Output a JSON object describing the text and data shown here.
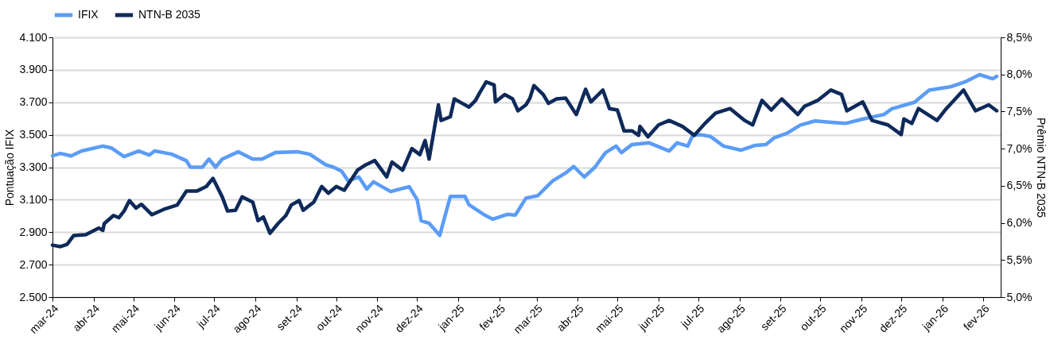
{
  "chart_data": {
    "type": "line",
    "ylabel": "Pontuação IFIX",
    "y2label": "Prêmio NTN-B 2035",
    "xlim": [
      "2024-03-01",
      "2026-02-14"
    ],
    "xticks": [
      {
        "value": "2024-03-01",
        "label": "mar-24"
      },
      {
        "value": "2024-04-01",
        "label": "abr-24"
      },
      {
        "value": "2024-05-01",
        "label": "mai-24"
      },
      {
        "value": "2024-06-01",
        "label": "jun-24"
      },
      {
        "value": "2024-07-01",
        "label": "jul-24"
      },
      {
        "value": "2024-08-01",
        "label": "ago-24"
      },
      {
        "value": "2024-09-01",
        "label": "set-24"
      },
      {
        "value": "2024-10-01",
        "label": "out-24"
      },
      {
        "value": "2024-11-01",
        "label": "nov-24"
      },
      {
        "value": "2024-12-01",
        "label": "dez-24"
      },
      {
        "value": "2025-01-01",
        "label": "jan-25"
      },
      {
        "value": "2025-02-01",
        "label": "fev-25"
      },
      {
        "value": "2025-03-01",
        "label": "mar-25"
      },
      {
        "value": "2025-04-01",
        "label": "abr-25"
      },
      {
        "value": "2025-05-01",
        "label": "mai-25"
      },
      {
        "value": "2025-06-01",
        "label": "jun-25"
      },
      {
        "value": "2025-07-01",
        "label": "jul-25"
      },
      {
        "value": "2025-08-01",
        "label": "ago-25"
      },
      {
        "value": "2025-09-01",
        "label": "set-25"
      },
      {
        "value": "2025-10-01",
        "label": "out-25"
      },
      {
        "value": "2025-11-01",
        "label": "nov-25"
      },
      {
        "value": "2025-12-01",
        "label": "dez-25"
      },
      {
        "value": "2026-01-01",
        "label": "jan-26"
      },
      {
        "value": "2026-02-01",
        "label": "fev-26"
      }
    ],
    "ylim": [
      2500,
      4100
    ],
    "yticks": [
      {
        "value": 2500,
        "label": "2.500"
      },
      {
        "value": 2700,
        "label": "2.700"
      },
      {
        "value": 2900,
        "label": "2.900"
      },
      {
        "value": 3100,
        "label": "3.100"
      },
      {
        "value": 3300,
        "label": "3.300"
      },
      {
        "value": 3500,
        "label": "3.500"
      },
      {
        "value": 3700,
        "label": "3.700"
      },
      {
        "value": 3900,
        "label": "3.900"
      },
      {
        "value": 4100,
        "label": "4.100"
      }
    ],
    "y2lim": [
      5.0,
      8.5
    ],
    "y2ticks": [
      {
        "value": 5.0,
        "label": "5,0%"
      },
      {
        "value": 5.5,
        "label": "5,5%"
      },
      {
        "value": 6.0,
        "label": "6,0%"
      },
      {
        "value": 6.5,
        "label": "6,5%"
      },
      {
        "value": 7.0,
        "label": "7,0%"
      },
      {
        "value": 7.5,
        "label": "7,5%"
      },
      {
        "value": 8.0,
        "label": "8,0%"
      },
      {
        "value": 8.5,
        "label": "8,5%"
      }
    ],
    "grid": "y",
    "legend": "top",
    "marker": "none",
    "line_style": "solid",
    "series": [
      {
        "name": "IFIX",
        "color": "#5b9cf6",
        "axis": "y",
        "x": [
          "2024-03-01",
          "2024-03-07",
          "2024-03-15",
          "2024-03-23",
          "2024-04-08",
          "2024-04-14",
          "2024-04-24",
          "2024-05-05",
          "2024-05-13",
          "2024-05-17",
          "2024-05-30",
          "2024-06-10",
          "2024-06-13",
          "2024-06-22",
          "2024-06-27",
          "2024-07-02",
          "2024-07-07",
          "2024-07-19",
          "2024-07-30",
          "2024-08-06",
          "2024-08-16",
          "2024-09-02",
          "2024-09-11",
          "2024-09-23",
          "2024-09-29",
          "2024-10-05",
          "2024-10-10",
          "2024-10-18",
          "2024-10-24",
          "2024-10-29",
          "2024-11-11",
          "2024-11-25",
          "2024-12-01",
          "2024-12-04",
          "2024-12-10",
          "2024-12-18",
          "2024-12-26",
          "2025-01-06",
          "2025-01-09",
          "2025-01-21",
          "2025-01-27",
          "2025-02-07",
          "2025-02-13",
          "2025-02-21",
          "2025-03-02",
          "2025-03-13",
          "2025-03-23",
          "2025-03-29",
          "2025-04-06",
          "2025-04-14",
          "2025-04-22",
          "2025-04-30",
          "2025-05-04",
          "2025-05-12",
          "2025-05-25",
          "2025-06-09",
          "2025-06-15",
          "2025-06-23",
          "2025-06-27",
          "2025-07-03",
          "2025-07-10",
          "2025-07-20",
          "2025-08-02",
          "2025-08-13",
          "2025-08-21",
          "2025-08-27",
          "2025-09-06",
          "2025-09-16",
          "2025-09-27",
          "2025-10-11",
          "2025-10-20",
          "2025-11-01",
          "2025-11-18",
          "2025-11-24",
          "2025-12-11",
          "2025-12-22",
          "2026-01-07",
          "2026-01-18",
          "2026-01-29",
          "2026-02-08",
          "2026-02-11"
        ],
        "values": [
          3370,
          3385,
          3370,
          3400,
          3430,
          3420,
          3365,
          3400,
          3375,
          3400,
          3380,
          3340,
          3300,
          3300,
          3350,
          3300,
          3350,
          3395,
          3350,
          3350,
          3390,
          3395,
          3380,
          3315,
          3300,
          3275,
          3215,
          3240,
          3165,
          3210,
          3150,
          3180,
          3100,
          2970,
          2955,
          2880,
          3120,
          3120,
          3070,
          3005,
          2980,
          3010,
          3005,
          3110,
          3125,
          3215,
          3265,
          3305,
          3240,
          3300,
          3390,
          3430,
          3390,
          3440,
          3450,
          3400,
          3450,
          3430,
          3500,
          3500,
          3490,
          3430,
          3405,
          3435,
          3440,
          3480,
          3510,
          3560,
          3585,
          3575,
          3570,
          3595,
          3625,
          3660,
          3700,
          3775,
          3795,
          3825,
          3870,
          3845,
          3860
        ]
      },
      {
        "name": "NTN-B 2035",
        "color": "#0e2a5a",
        "axis": "y2",
        "x": [
          "2024-03-01",
          "2024-03-07",
          "2024-03-12",
          "2024-03-17",
          "2024-03-26",
          "2024-04-05",
          "2024-04-08",
          "2024-04-09",
          "2024-04-16",
          "2024-04-20",
          "2024-04-24",
          "2024-04-28",
          "2024-05-03",
          "2024-05-07",
          "2024-05-15",
          "2024-05-25",
          "2024-06-03",
          "2024-06-10",
          "2024-06-18",
          "2024-06-25",
          "2024-06-30",
          "2024-07-07",
          "2024-07-11",
          "2024-07-17",
          "2024-07-22",
          "2024-07-30",
          "2024-08-03",
          "2024-08-07",
          "2024-08-12",
          "2024-08-18",
          "2024-08-24",
          "2024-08-28",
          "2024-09-03",
          "2024-09-06",
          "2024-09-14",
          "2024-09-20",
          "2024-09-25",
          "2024-10-01",
          "2024-10-07",
          "2024-10-17",
          "2024-10-23",
          "2024-10-30",
          "2024-11-08",
          "2024-11-12",
          "2024-11-20",
          "2024-11-27",
          "2024-12-03",
          "2024-12-07",
          "2024-12-10",
          "2024-12-17",
          "2024-12-19",
          "2024-12-26",
          "2024-12-29",
          "2025-01-04",
          "2025-01-09",
          "2025-01-14",
          "2025-01-17",
          "2025-01-22",
          "2025-01-28",
          "2025-01-29",
          "2025-02-05",
          "2025-02-11",
          "2025-02-15",
          "2025-02-21",
          "2025-02-24",
          "2025-02-27",
          "2025-03-06",
          "2025-03-10",
          "2025-03-16",
          "2025-03-23",
          "2025-03-31",
          "2025-04-07",
          "2025-04-11",
          "2025-04-20",
          "2025-04-25",
          "2025-05-01",
          "2025-05-06",
          "2025-05-12",
          "2025-05-17",
          "2025-05-18",
          "2025-05-24",
          "2025-06-01",
          "2025-06-09",
          "2025-06-19",
          "2025-06-28",
          "2025-07-06",
          "2025-07-14",
          "2025-07-25",
          "2025-08-05",
          "2025-08-11",
          "2025-08-18",
          "2025-08-25",
          "2025-09-02",
          "2025-09-14",
          "2025-09-19",
          "2025-09-29",
          "2025-10-09",
          "2025-10-17",
          "2025-10-21",
          "2025-11-02",
          "2025-11-09",
          "2025-11-21",
          "2025-12-01",
          "2025-12-03",
          "2025-12-09",
          "2025-12-14",
          "2025-12-28",
          "2026-01-04",
          "2026-01-17",
          "2026-01-26",
          "2026-02-05",
          "2026-02-11"
        ],
        "values": [
          5.7,
          5.68,
          5.71,
          5.83,
          5.84,
          5.93,
          5.9,
          5.99,
          6.1,
          6.07,
          6.16,
          6.3,
          6.2,
          6.25,
          6.11,
          6.19,
          6.24,
          6.43,
          6.43,
          6.49,
          6.6,
          6.35,
          6.16,
          6.17,
          6.35,
          6.28,
          6.03,
          6.08,
          5.86,
          5.99,
          6.1,
          6.24,
          6.3,
          6.17,
          6.28,
          6.49,
          6.4,
          6.49,
          6.44,
          6.71,
          6.78,
          6.84,
          6.62,
          6.82,
          6.71,
          7.0,
          6.92,
          7.11,
          6.86,
          7.59,
          7.38,
          7.43,
          7.67,
          7.61,
          7.56,
          7.65,
          7.75,
          7.9,
          7.86,
          7.63,
          7.73,
          7.67,
          7.51,
          7.59,
          7.68,
          7.85,
          7.73,
          7.61,
          7.67,
          7.68,
          7.46,
          7.8,
          7.63,
          7.79,
          7.54,
          7.52,
          7.24,
          7.24,
          7.18,
          7.3,
          7.16,
          7.32,
          7.38,
          7.3,
          7.18,
          7.34,
          7.48,
          7.54,
          7.38,
          7.32,
          7.65,
          7.52,
          7.67,
          7.46,
          7.57,
          7.65,
          7.79,
          7.73,
          7.51,
          7.63,
          7.38,
          7.32,
          7.19,
          7.4,
          7.34,
          7.54,
          7.38,
          7.54,
          7.79,
          7.51,
          7.59,
          7.51
        ]
      }
    ]
  }
}
